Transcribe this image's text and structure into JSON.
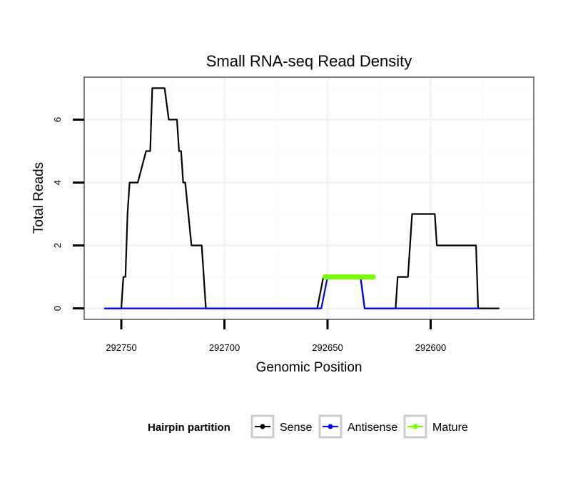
{
  "chart_data": {
    "type": "line",
    "title": "Small RNA-seq Read Density",
    "xlabel": "Genomic Position",
    "ylabel": "Total Reads",
    "x_reversed": true,
    "xlim": [
      292768,
      292550
    ],
    "ylim": [
      -0.35,
      7.35
    ],
    "x_ticks": [
      292750,
      292700,
      292650,
      292600
    ],
    "x_tick_labels": [
      "292750",
      "292700",
      "292650",
      "292600"
    ],
    "y_ticks": [
      0,
      2,
      4,
      6
    ],
    "y_tick_labels": [
      "0",
      "2",
      "4",
      "6"
    ],
    "grid": true,
    "legend": {
      "title": "Hairpin partition",
      "position": "bottom",
      "entries": [
        {
          "label": "Sense",
          "color": "#000000"
        },
        {
          "label": "Antisense",
          "color": "#0000ff"
        },
        {
          "label": "Mature",
          "color": "#7cfc00"
        }
      ]
    },
    "series": [
      {
        "name": "Sense",
        "color": "#000000",
        "x": [
          292758,
          292750,
          292749,
          292748,
          292747,
          292746,
          292744,
          292742,
          292738,
          292737,
          292736,
          292735,
          292731,
          292729,
          292727,
          292726,
          292725,
          292723,
          292722,
          292721,
          292720,
          292719,
          292716,
          292715,
          292711,
          292709,
          292657,
          292655,
          292652,
          292650,
          292649,
          292635,
          292634,
          292632,
          292631,
          292623,
          292622,
          292617,
          292616,
          292612,
          292611,
          292609,
          292598,
          292597,
          292588,
          292587,
          292578,
          292577,
          292567
        ],
        "y": [
          0,
          0,
          1,
          1,
          3,
          4,
          4,
          4,
          5,
          5,
          5,
          7,
          7,
          7,
          6,
          6,
          6,
          6,
          5,
          5,
          4,
          4,
          2,
          2,
          2,
          0,
          0,
          0,
          1,
          1,
          1,
          1,
          1,
          0,
          0,
          0,
          0,
          0,
          1,
          1,
          1,
          3,
          3,
          2,
          2,
          2,
          2,
          0,
          0
        ]
      },
      {
        "name": "Antisense",
        "color": "#0000ff",
        "x": [
          292758,
          292709,
          292657,
          292653,
          292650,
          292634,
          292632,
          292577
        ],
        "y": [
          0,
          0,
          0,
          0,
          1,
          1,
          0,
          0
        ]
      },
      {
        "name": "Mature",
        "color": "#7cfc00",
        "x": [
          292651,
          292628
        ],
        "y": [
          1,
          1
        ]
      }
    ]
  }
}
